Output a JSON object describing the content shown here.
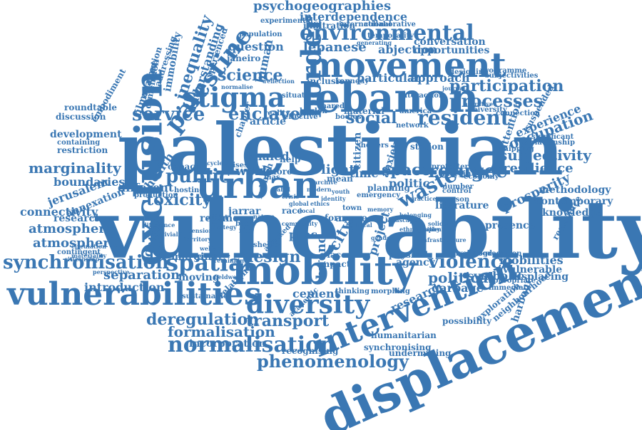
{
  "color": "#3a77b3",
  "words": [
    "vulnerability",
    "palestinian",
    "displacement",
    "mobility",
    "exclusion",
    "lebanon",
    "movement",
    "urban",
    "vulnerabilities",
    "intervention",
    "diversity",
    "border",
    "environmental",
    "stigma",
    "palestine",
    "waste",
    "spatial",
    "normalisation",
    "phenomenology",
    "synchronisation",
    "service",
    "public",
    "refugee",
    "resident",
    "participation",
    "processes",
    "transport",
    "deregulation",
    "formalisation",
    "violence",
    "social",
    "enclave",
    "science",
    "space",
    "toxicity",
    "design",
    "political",
    "psychogeographies",
    "interdependence",
    "lebanese",
    "abjection",
    "conversation",
    "opportunities",
    "subjectivity",
    "resilience",
    "occupation",
    "experience",
    "prosperity",
    "methodology",
    "contemporary",
    "knowledge",
    "literature",
    "presence",
    "mobilities",
    "vulnerable",
    "displacing",
    "symbolic",
    "garbage",
    "research",
    "cement",
    "separation",
    "moving",
    "introduction",
    "atmosphere",
    "atmospheric",
    "marginality",
    "boundaries",
    "jerusalem",
    "annexation",
    "connectivity",
    "researcher",
    "different",
    "capacity",
    "health",
    "inequality",
    "understanding",
    "immobility",
    "dimension",
    "filmmaker",
    "particular",
    "approach",
    "material",
    "attention",
    "work",
    "light",
    "time",
    "politic",
    "city",
    "proc",
    "regime",
    "jarrar",
    "khaled",
    "article",
    "question",
    "human",
    "janeiro",
    "population",
    "development",
    "restriction",
    "discussion",
    "roundtable",
    "embodiment",
    "addressing",
    "attribution",
    "experienced",
    "harbour",
    "incorporation",
    "recognising",
    "synchronising",
    "humanitarian",
    "undermining",
    "exploration",
    "neighbourhood",
    "possibility",
    "project",
    "citizen",
    "anxiety",
    "station",
    "place",
    "impact",
    "argue",
    "agency",
    "physical",
    "bueno",
    "marginal",
    "context",
    "contingent",
    "containing",
    "relation",
    "sustainable",
    "academic",
    "infiltration",
    "experimental",
    "international",
    "collaborative",
    "temporality",
    "generating",
    "inclusion",
    "reality",
    "effective",
    "london",
    "shared",
    "mean",
    "olive",
    "rubbish",
    "more",
    "mas",
    "help",
    "form",
    "town",
    "kennedy",
    "race",
    "crises",
    "hosting",
    "production",
    "effect",
    "basic",
    "attacked",
    "shelter",
    "rio",
    "thinking",
    "morphing",
    "appropriate",
    "immediate",
    "livelihood",
    "segregation",
    "shipping",
    "significant",
    "resistance",
    "relationship",
    "programme",
    "subjectivities",
    "connection",
    "suspended",
    "university",
    "america",
    "shelters",
    "network",
    "control",
    "person",
    "number",
    "margin",
    "protester",
    "planning",
    "emergency",
    "economy",
    "collective",
    "rethinking",
    "difference",
    "conviviality",
    "interaction",
    "journal",
    "narrative",
    "reflection",
    "situation",
    "normalise",
    "designing",
    "materiality",
    "circulation",
    "citizenship",
    "perspective",
    "fieldwork",
    "bodies",
    "chapter",
    "cycle",
    "nature",
    "community",
    "ethics",
    "political",
    "gender",
    "ethnography",
    "belonging",
    "resilient",
    "solidarity",
    "infrastructure",
    "landscape",
    "memory",
    "practice",
    "strategy",
    "tension",
    "territory",
    "welfare",
    "youth",
    "identity",
    "label",
    "crisis",
    "global",
    "local",
    "modern",
    "archive"
  ]
}
